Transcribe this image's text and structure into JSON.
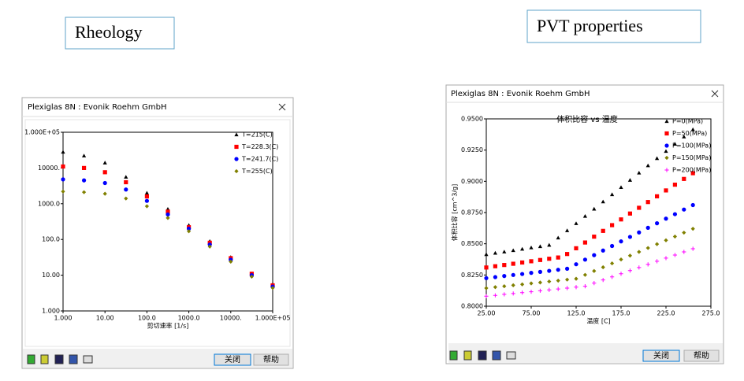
{
  "labels": [
    "Rheology",
    "PVT properties"
  ],
  "windows": [
    {
      "title": "Plexiglas 8N : Evonik Roehm GmbH",
      "buttons": [
        "关闭",
        "帮助"
      ]
    },
    {
      "title": "Plexiglas 8N : Evonik Roehm GmbH",
      "buttons": [
        "关闭",
        "帮助"
      ]
    }
  ],
  "chart_data": [
    {
      "type": "scatter",
      "xlabel": "剪切速率 [1/s]",
      "log_x": true,
      "log_y": true,
      "legend": "upper right",
      "x": [
        1,
        3.16,
        10,
        31.6,
        100,
        316,
        1000,
        3160,
        10000,
        31600,
        100000
      ],
      "xlim": [
        1,
        100000
      ],
      "xticks": [
        {
          "value": 1,
          "label": "1.000"
        },
        {
          "value": 10,
          "label": "10.00"
        },
        {
          "value": 100,
          "label": "100.0"
        },
        {
          "value": 1000,
          "label": "1000.0"
        },
        {
          "value": 10000,
          "label": "10000."
        },
        {
          "value": 100000,
          "label": "1.000E+05"
        }
      ],
      "ylim": [
        1,
        100000
      ],
      "yticks": [
        {
          "value": 1,
          "label": "1.000"
        },
        {
          "value": 10,
          "label": "10.00"
        },
        {
          "value": 100,
          "label": "100.0"
        },
        {
          "value": 1000,
          "label": "1000.0"
        },
        {
          "value": 10000,
          "label": "10000."
        },
        {
          "value": 100000,
          "label": "1.000E+05"
        }
      ],
      "series": [
        {
          "name": "T=215(C)",
          "color": "#000000",
          "marker": "triangle",
          "values": [
            28000,
            22000,
            14000,
            5600,
            2000,
            710,
            250,
            89,
            32,
            11,
            5.6
          ]
        },
        {
          "name": "T=228.3(C)",
          "color": "#ff0000",
          "marker": "square",
          "values": [
            11000,
            10000,
            7600,
            4000,
            1600,
            600,
            220,
            81,
            30,
            11,
            5.2
          ]
        },
        {
          "name": "T=241.7(C)",
          "color": "#0000ff",
          "marker": "circle",
          "values": [
            4800,
            4500,
            3800,
            2500,
            1200,
            500,
            200,
            72,
            27,
            10,
            4.8
          ]
        },
        {
          "name": "T=255(C)",
          "color": "#808000",
          "marker": "diamond",
          "values": [
            2200,
            2100,
            1900,
            1400,
            850,
            400,
            170,
            63,
            24,
            9.1,
            4.4
          ]
        }
      ]
    },
    {
      "type": "scatter",
      "title": "体积比容 vs 温度",
      "xlabel": "温度 [C]",
      "ylabel": "体积比容 [cm^3/g]",
      "legend": "upper right",
      "x": [
        25,
        35,
        45,
        55,
        65,
        75,
        85,
        95,
        105,
        115,
        125,
        135,
        145,
        155,
        165,
        175,
        185,
        195,
        205,
        215,
        225,
        235,
        245,
        255
      ],
      "xlim": [
        25,
        275
      ],
      "xticks": [
        {
          "value": 25,
          "label": "25.00"
        },
        {
          "value": 75,
          "label": "75.00"
        },
        {
          "value": 125,
          "label": "125.0"
        },
        {
          "value": 175,
          "label": "175.0"
        },
        {
          "value": 225,
          "label": "225.0"
        },
        {
          "value": 275,
          "label": "275.0"
        }
      ],
      "ylim": [
        0.8,
        0.95
      ],
      "yticks": [
        {
          "value": 0.8,
          "label": "0.8000"
        },
        {
          "value": 0.825,
          "label": "0.8250"
        },
        {
          "value": 0.85,
          "label": "0.8500"
        },
        {
          "value": 0.875,
          "label": "0.8750"
        },
        {
          "value": 0.9,
          "label": "0.9000"
        },
        {
          "value": 0.925,
          "label": "0.9250"
        },
        {
          "value": 0.95,
          "label": "0.9500"
        }
      ],
      "series": [
        {
          "name": "P=0(MPa)",
          "color": "#000000",
          "marker": "triangle",
          "values": [
            0.8415,
            0.8426,
            0.8436,
            0.8447,
            0.8458,
            0.8469,
            0.8479,
            0.849,
            0.8548,
            0.8606,
            0.8663,
            0.8721,
            0.8779,
            0.8837,
            0.8895,
            0.8952,
            0.901,
            0.9068,
            0.9126,
            0.9184,
            0.9241,
            0.9299,
            0.9357,
            0.9415
          ]
        },
        {
          "name": "P=50(MPa)",
          "color": "#ff0000",
          "marker": "square",
          "values": [
            0.831,
            0.832,
            0.833,
            0.834,
            0.835,
            0.836,
            0.837,
            0.838,
            0.839,
            0.8418,
            0.8464,
            0.851,
            0.8557,
            0.8603,
            0.8649,
            0.8695,
            0.8742,
            0.8788,
            0.8834,
            0.888,
            0.8927,
            0.8973,
            0.9019,
            0.9065
          ]
        },
        {
          "name": "P=100(MPa)",
          "color": "#0000ff",
          "marker": "circle",
          "values": [
            0.8225,
            0.8233,
            0.8242,
            0.825,
            0.8258,
            0.8267,
            0.8275,
            0.8283,
            0.8292,
            0.83,
            0.8336,
            0.8373,
            0.8409,
            0.8446,
            0.8482,
            0.8519,
            0.8555,
            0.8591,
            0.8628,
            0.8664,
            0.8701,
            0.8737,
            0.8774,
            0.881
          ]
        },
        {
          "name": "P=150(MPa)",
          "color": "#808000",
          "marker": "diamond",
          "values": [
            0.8145,
            0.8153,
            0.816,
            0.8168,
            0.8175,
            0.8183,
            0.819,
            0.8198,
            0.8205,
            0.8213,
            0.822,
            0.8251,
            0.8282,
            0.8312,
            0.8343,
            0.8374,
            0.8405,
            0.8435,
            0.8466,
            0.8497,
            0.8528,
            0.8558,
            0.8589,
            0.862
          ]
        },
        {
          "name": "P=200(MPa)",
          "color": "#ff00ff",
          "marker": "plus",
          "values": [
            0.808,
            0.8087,
            0.8095,
            0.8102,
            0.8109,
            0.8116,
            0.8124,
            0.8131,
            0.8138,
            0.8145,
            0.8153,
            0.816,
            0.8185,
            0.821,
            0.8235,
            0.826,
            0.8285,
            0.831,
            0.8335,
            0.836,
            0.8385,
            0.841,
            0.8435,
            0.846
          ]
        }
      ]
    }
  ]
}
